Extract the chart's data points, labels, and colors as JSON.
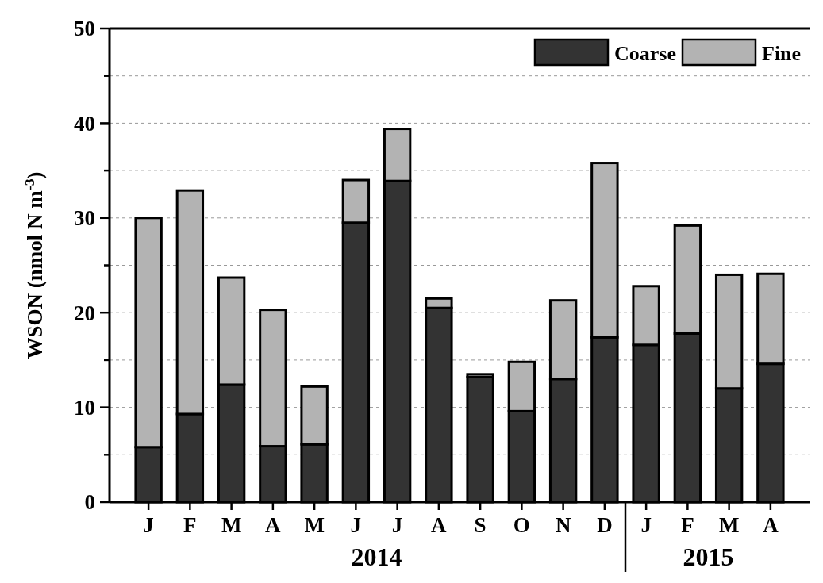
{
  "chart_data": {
    "type": "bar",
    "stacked": true,
    "ylabel": "WSON (nmol N m$^{-3}$)",
    "categories": [
      "J",
      "F",
      "M",
      "A",
      "M",
      "J",
      "J",
      "A",
      "S",
      "O",
      "N",
      "D",
      "J",
      "F",
      "M",
      "A"
    ],
    "series": [
      {
        "name": "Coarse",
        "color": "#333333",
        "values": [
          5.8,
          9.3,
          12.4,
          5.9,
          6.1,
          29.5,
          33.9,
          20.5,
          13.2,
          9.6,
          13.0,
          17.4,
          16.6,
          17.8,
          12.0,
          14.6
        ]
      },
      {
        "name": "Fine",
        "color": "#b3b3b3",
        "values": [
          24.2,
          23.6,
          11.3,
          14.4,
          6.1,
          4.5,
          5.5,
          1.0,
          0.3,
          5.2,
          8.3,
          18.4,
          6.2,
          11.4,
          12.0,
          9.5
        ]
      }
    ],
    "ylim": [
      0,
      50
    ],
    "yticks": [
      0,
      {
        "value": 5,
        "label": null
      },
      10,
      {
        "value": 15,
        "label": null
      },
      20,
      {
        "value": 25,
        "label": null
      },
      30,
      {
        "value": 35,
        "label": null
      },
      40,
      {
        "value": 45,
        "label": null
      },
      50
    ],
    "grid": "y",
    "legend": "top right",
    "annotations": [
      "2014",
      "2015"
    ]
  }
}
